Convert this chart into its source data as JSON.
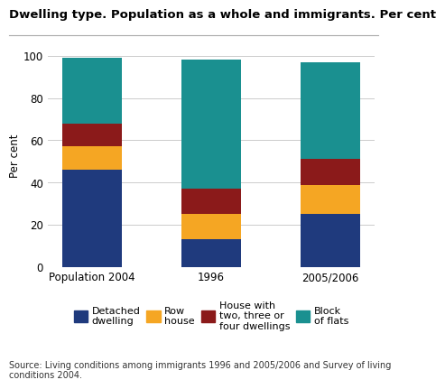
{
  "title": "Dwelling type. Population as a whole and immigrants. Per cent",
  "ylabel": "Per cent",
  "source": "Source: Living conditions among immigrants 1996 and 2005/2006 and Survey of living\nconditions 2004.",
  "categories": [
    "Population 2004",
    "1996",
    "2005/2006"
  ],
  "series": {
    "Detached dwelling": [
      46,
      13,
      25
    ],
    "Row house": [
      11,
      12,
      14
    ],
    "House with two, three or four dwellings": [
      11,
      12,
      12
    ],
    "Block of flats": [
      31,
      61,
      46
    ]
  },
  "colors": {
    "Detached dwelling": "#1f3a7d",
    "Row house": "#f5a623",
    "House with two, three or four dwellings": "#8b1a1a",
    "Block of flats": "#1a9090"
  },
  "ylim": [
    0,
    105
  ],
  "yticks": [
    0,
    20,
    40,
    60,
    80,
    100
  ],
  "bar_width": 0.5,
  "background_color": "#ffffff",
  "grid_color": "#cccccc",
  "title_fontsize": 9.5,
  "axis_fontsize": 8.5,
  "legend_fontsize": 8,
  "source_fontsize": 7
}
